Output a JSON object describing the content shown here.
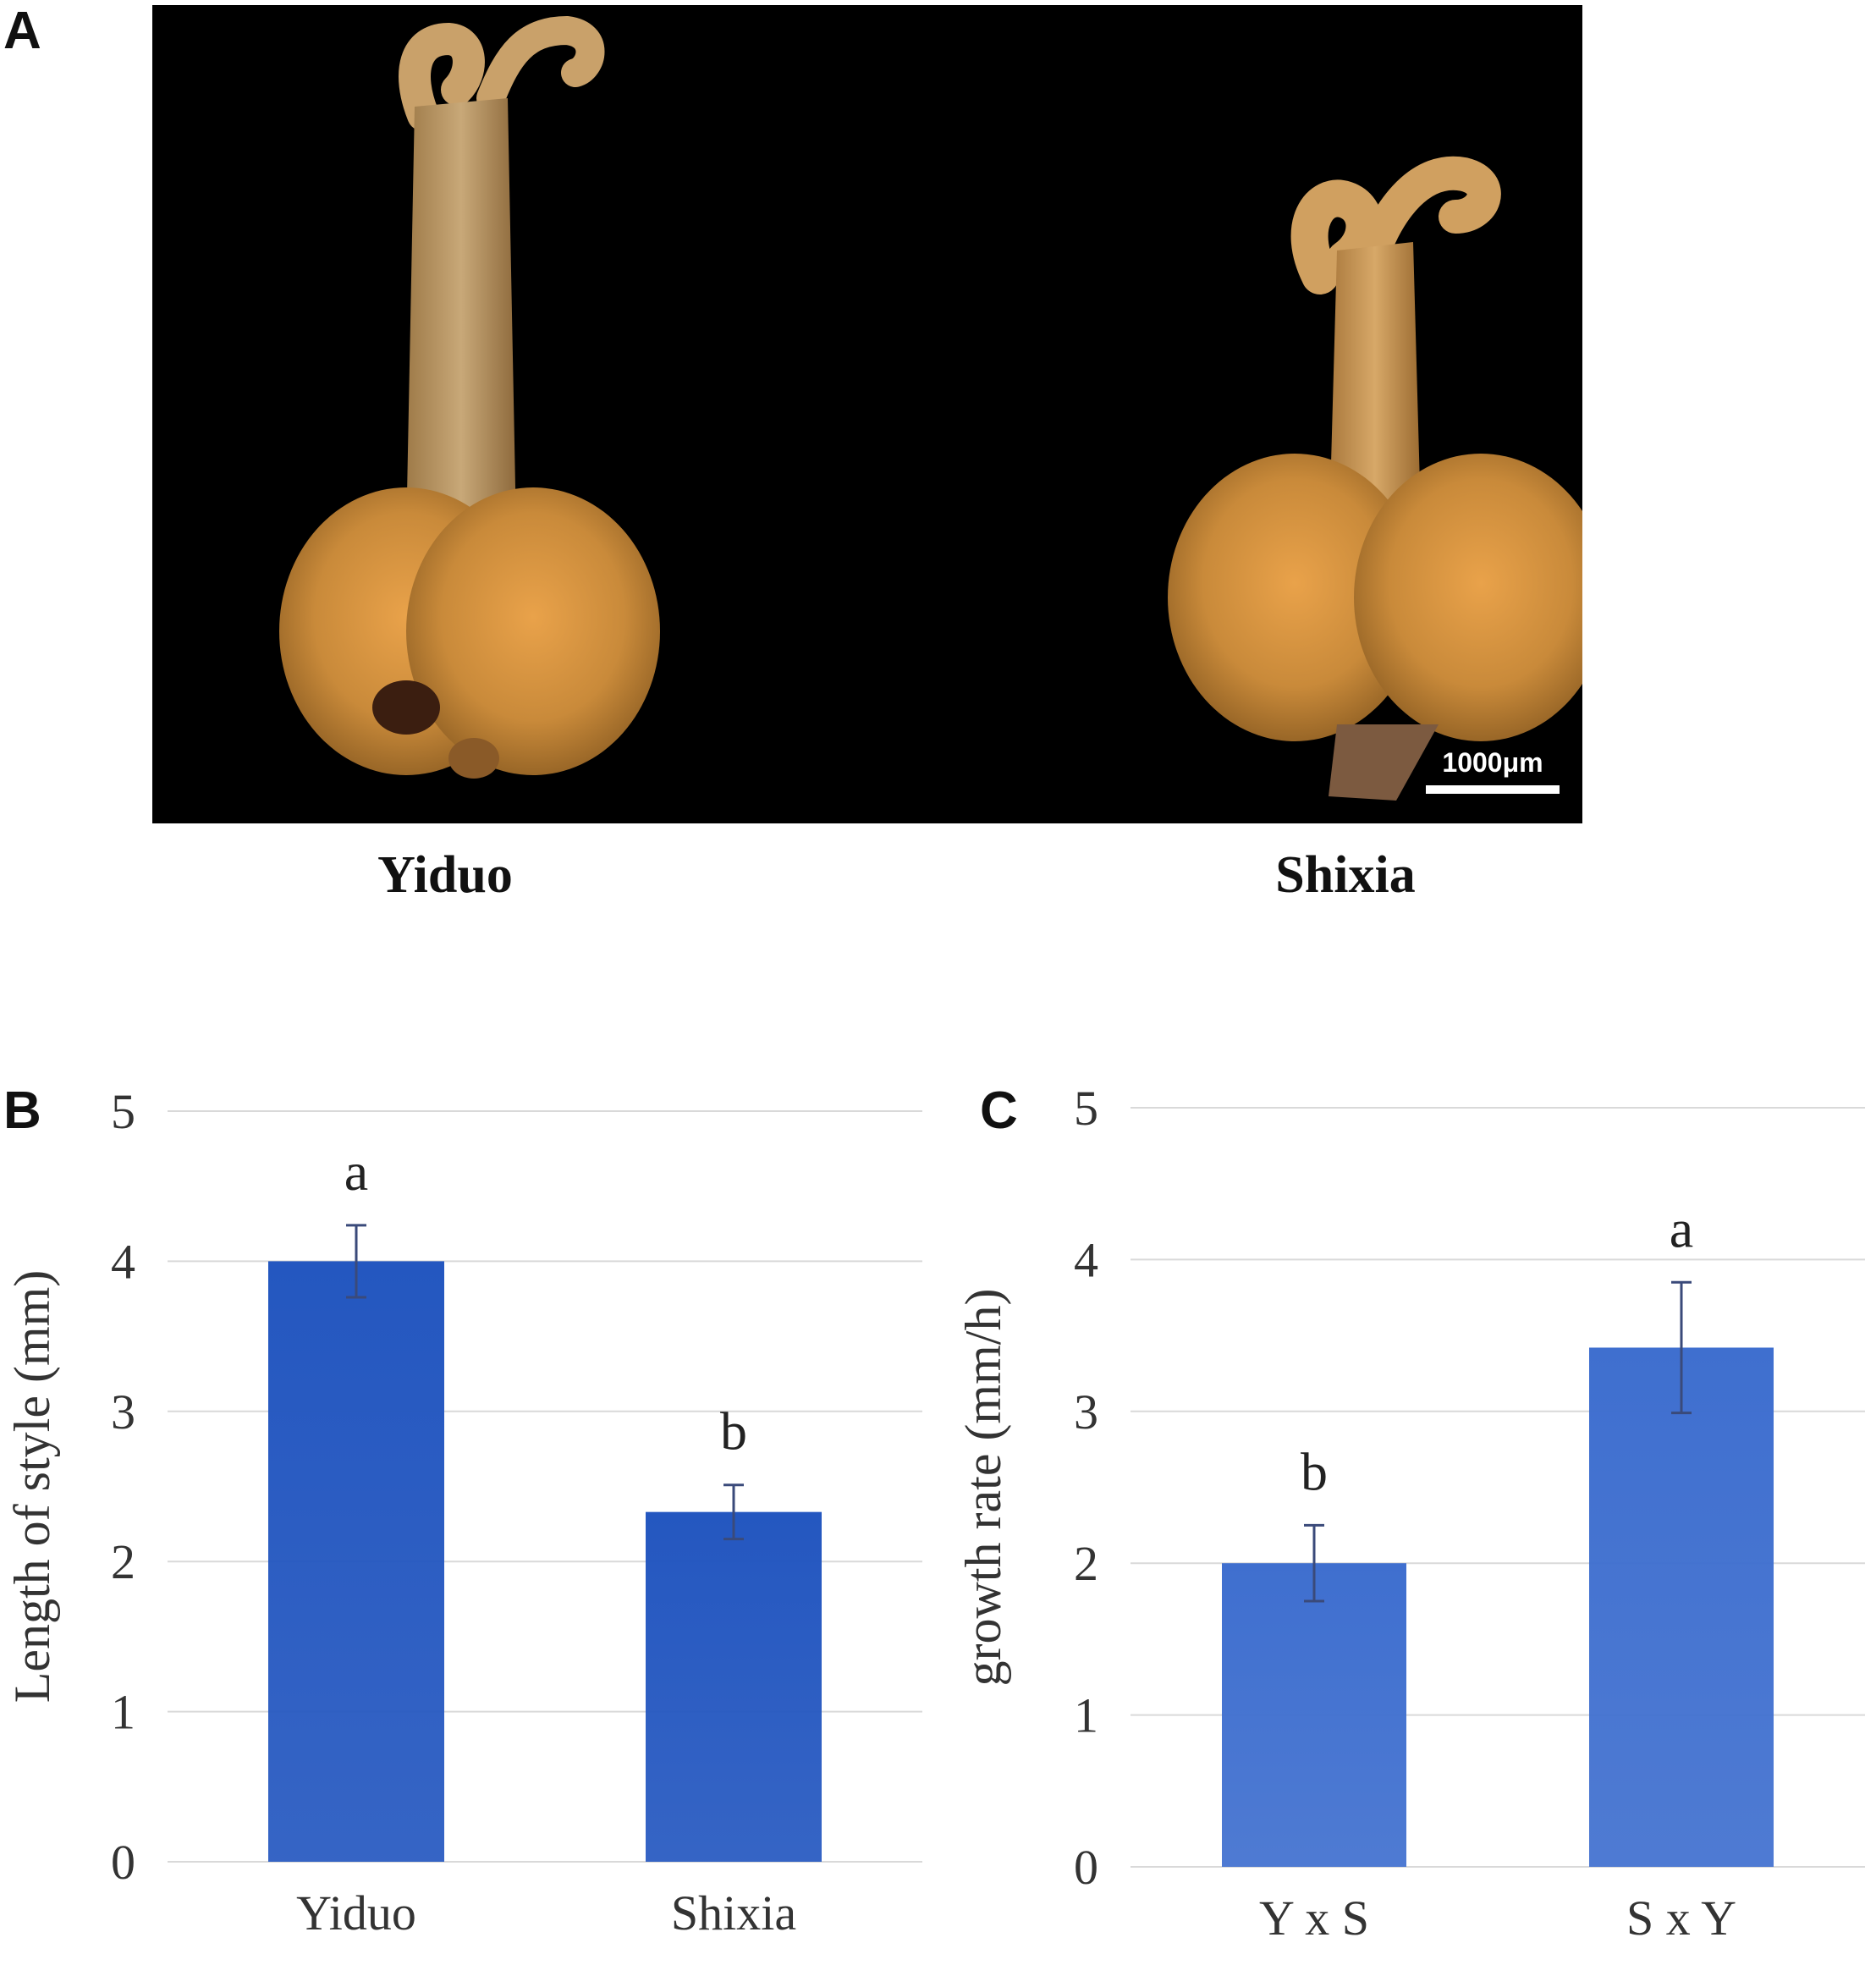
{
  "panels": {
    "a": {
      "letter": "A",
      "scale_bar_label": "1000μm",
      "captions": [
        "Yiduo",
        "Shixia"
      ]
    },
    "b": {
      "letter": "B",
      "chart_data": {
        "type": "bar",
        "categories": [
          "Yiduo",
          "Shixia"
        ],
        "values": [
          4.0,
          2.33
        ],
        "errors": [
          0.24,
          0.18
        ],
        "significance": [
          "a",
          "b"
        ],
        "ylabel": "Length of style (mm)",
        "ylim": [
          0,
          5
        ],
        "yticks": [
          "0",
          "1",
          "2",
          "3",
          "4",
          "5"
        ],
        "grid": true,
        "bar_color": "#2457c0"
      }
    },
    "c": {
      "letter": "C",
      "chart_data": {
        "type": "bar",
        "categories": [
          "Y x S",
          "S x Y"
        ],
        "values": [
          2.0,
          3.42
        ],
        "errors": [
          0.25,
          0.43
        ],
        "significance": [
          "b",
          "a"
        ],
        "ylabel": "growth rate (mm/h)",
        "ylim": [
          0,
          5
        ],
        "yticks": [
          "0",
          "1",
          "2",
          "3",
          "4",
          "5"
        ],
        "grid": true,
        "bar_color": "#3f6fcf"
      }
    }
  }
}
